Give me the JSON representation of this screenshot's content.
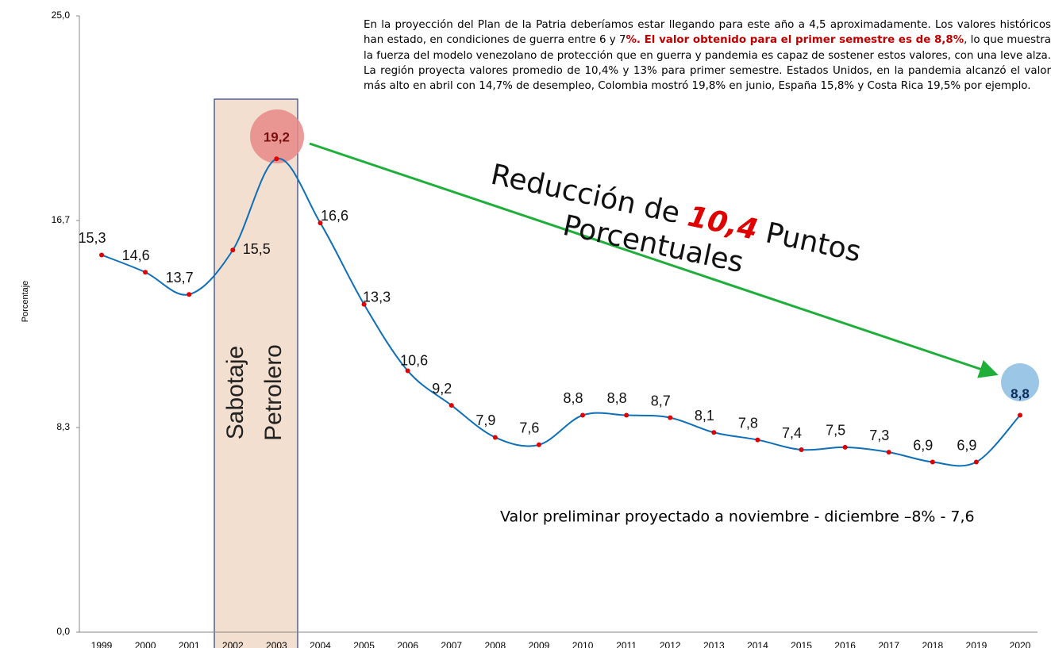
{
  "chart_data": {
    "type": "line",
    "y_label": "Porcentaje",
    "categories": [
      "1999",
      "2000",
      "2001",
      "2002",
      "2003",
      "2004",
      "2005",
      "2006",
      "2007",
      "2008",
      "2009",
      "2010",
      "2011",
      "2012",
      "2013",
      "2014",
      "2015",
      "2016",
      "2017",
      "2018",
      "2019",
      "2020"
    ],
    "series": [
      {
        "name": "Porcentaje",
        "color": "#0e6fb8",
        "values": [
          15.3,
          14.6,
          13.7,
          15.5,
          19.2,
          16.6,
          13.3,
          10.6,
          9.2,
          7.9,
          7.6,
          8.8,
          8.8,
          8.7,
          8.1,
          7.8,
          7.4,
          7.5,
          7.3,
          6.9,
          6.9,
          8.8
        ],
        "value_labels": [
          "15,3",
          "14,6",
          "13,7",
          "15,5",
          "19,2",
          "16,6",
          "13,3",
          "10,6",
          "9,2",
          "7,9",
          "7,6",
          "8,8",
          "8,8",
          "8,7",
          "8,1",
          "7,8",
          "7,4",
          "7,5",
          "7,3",
          "6,9",
          "6,9",
          "8,8"
        ]
      }
    ],
    "ylim": [
      0,
      25
    ],
    "yticks": [
      {
        "value": 0,
        "label": "0,0"
      },
      {
        "value": 8.3,
        "label": "8,3"
      },
      {
        "value": 16.7,
        "label": "16,7"
      },
      {
        "value": 25,
        "label": "25,0"
      }
    ],
    "grid": false,
    "annotations": {
      "paragraph": [
        "En la proyección del Plan de la Patria deberíamos estar llegando para este año a 4,5 aproximadamente. Los valores históricos han estado, en condiciones de guerra entre 6 y 7",
        "%. El valor obtenido para el primer semestre es de 8,8%",
        ", lo que muestra la fuerza del modelo venezolano de protección que en guerra y pandemia es capaz de sostener estos valores, con una leve alza. La región proyecta valores promedio de 10,4% y 13% para primer semestre. Estados Unidos, en la pandemia alcanzó el valor más alto en abril con 14,7% de desempleo, Colombia mostró 19,8% en junio, España 15,8% y Costa Rica 19,5% por ejemplo."
      ],
      "sabotaje": [
        "Sabotaje",
        "Petrolero"
      ],
      "reduccion": [
        "Reducción de ",
        "10,4",
        " Puntos",
        "Porcentuales"
      ],
      "preliminar": "Valor preliminar proyectado a noviembre - diciembre –8% - 7,6"
    }
  }
}
